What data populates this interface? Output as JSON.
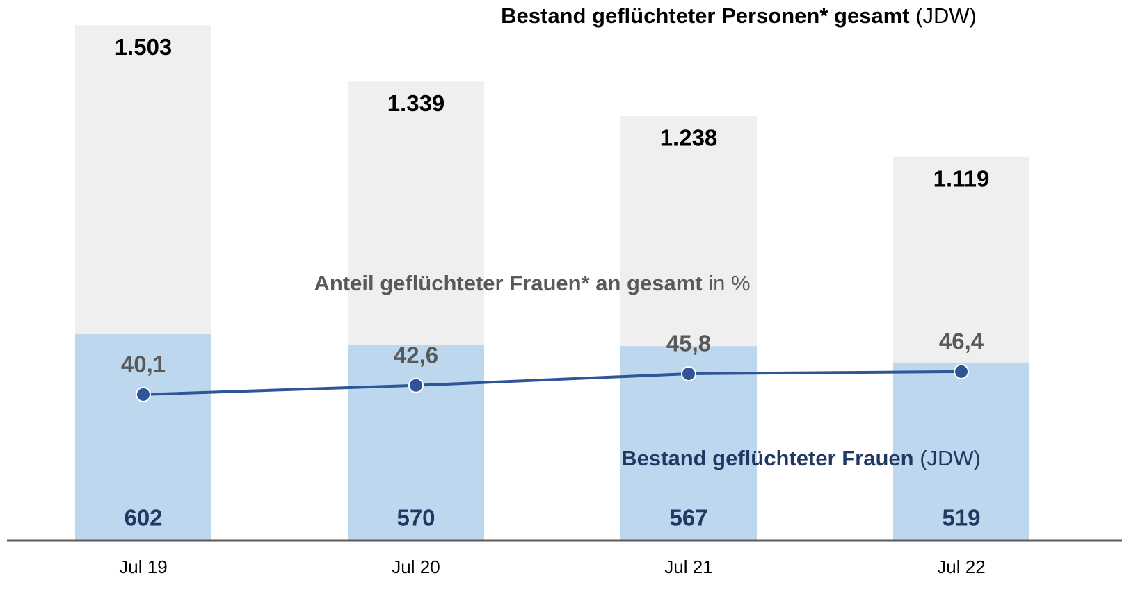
{
  "chart_data": {
    "type": "bar",
    "categories": [
      "Jul 19",
      "Jul 20",
      "Jul 21",
      "Jul 22"
    ],
    "series": [
      {
        "name": "Bestand geflüchteter Personen* gesamt",
        "unit": "(JDW)",
        "type": "bar",
        "color": "#efefef",
        "values": [
          1503,
          1339,
          1238,
          1119
        ],
        "value_labels": [
          "1.503",
          "1.339",
          "1.238",
          "1.119"
        ]
      },
      {
        "name": "Bestand geflüchteter Frauen",
        "unit": "(JDW)",
        "type": "bar",
        "color": "#bdd7ee",
        "values": [
          602,
          570,
          567,
          519
        ]
      },
      {
        "name": "Anteil geflüchteter Frauen* an gesamt",
        "unit": "in %",
        "type": "line",
        "axis": "y2",
        "color": "#2f5597",
        "values": [
          40.1,
          42.6,
          45.8,
          46.4
        ],
        "value_labels": [
          "40,1",
          "42,6",
          "45,8",
          "46,4"
        ]
      }
    ]
  }
}
